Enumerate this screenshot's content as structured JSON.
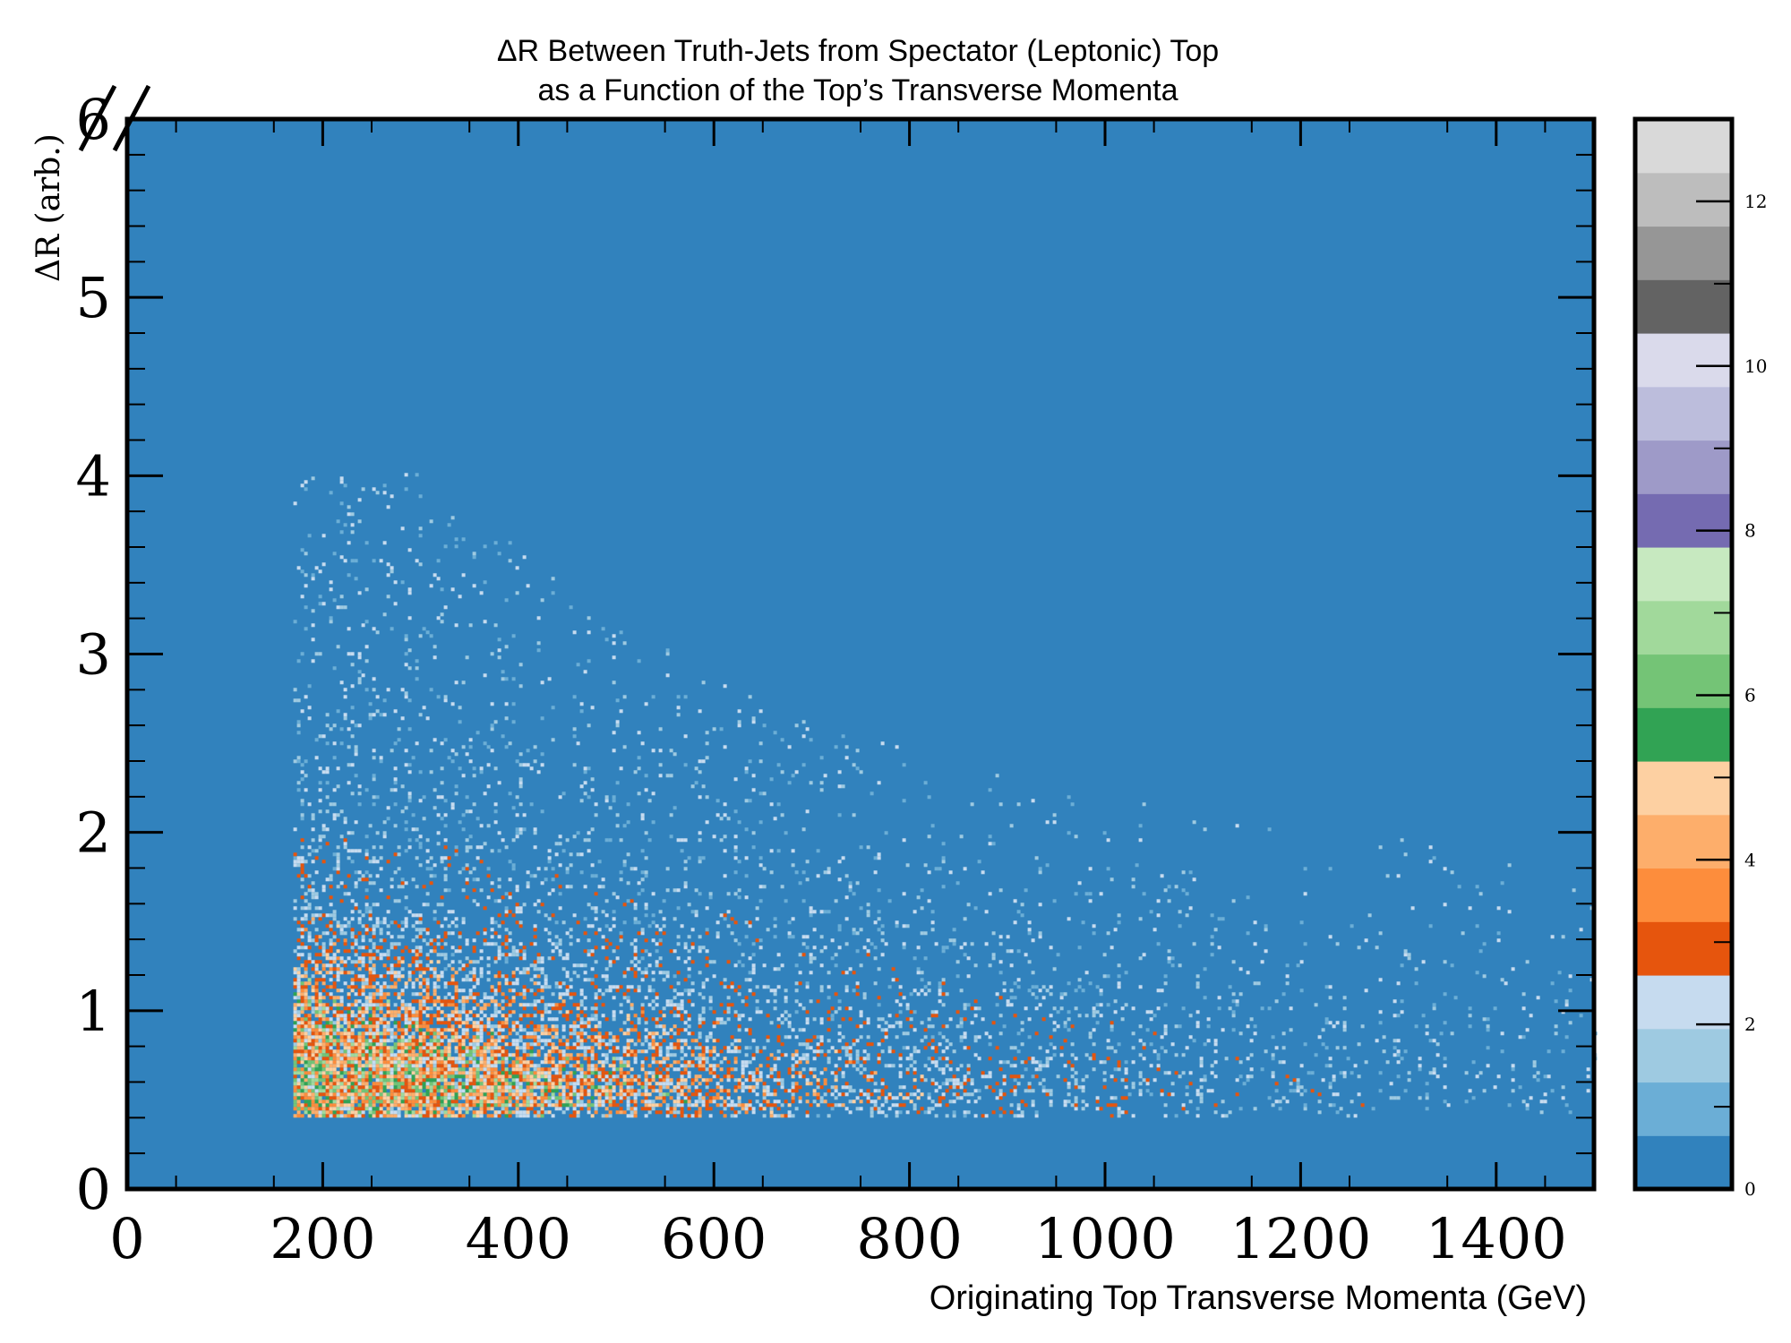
{
  "chart_data": {
    "type": "heatmap",
    "title_lines": [
      "ΔR Between Truth-Jets from Spectator (Leptonic) Top",
      "as a Function of the Top’s Transverse Momenta"
    ],
    "xlabel": "Originating Top Transverse Momenta (GeV)",
    "ylabel": "ΔR (arb.)",
    "xlim": [
      0,
      1500
    ],
    "ylim": [
      0,
      6
    ],
    "x_ticks": [
      "0",
      "200",
      "400",
      "600",
      "800",
      "1000",
      "1200",
      "1400"
    ],
    "x_tick_values": [
      0,
      200,
      400,
      600,
      800,
      1000,
      1200,
      1400
    ],
    "y_ticks": [
      "0",
      "1",
      "2",
      "3",
      "4",
      "5",
      "6"
    ],
    "y_tick_values": [
      0,
      1,
      2,
      3,
      4,
      5,
      6
    ],
    "colorbar": {
      "range": [
        0,
        13
      ],
      "ticks": [
        "0",
        "2",
        "4",
        "6",
        "8",
        "10",
        "12"
      ],
      "tick_values": [
        0,
        2,
        4,
        6,
        8,
        10,
        12
      ],
      "colors": [
        "#3182bd",
        "#6baed6",
        "#9ecae1",
        "#c6dbef",
        "#e6550d",
        "#fd8d3c",
        "#fdae6b",
        "#fdd0a2",
        "#31a354",
        "#74c476",
        "#a1d99b",
        "#c7e9c0",
        "#756bb1",
        "#9e9ac8",
        "#bcbddc",
        "#dadaeb",
        "#636363",
        "#969696",
        "#bdbdbd",
        "#d9d9d9"
      ]
    },
    "distribution": {
      "x_min": 170,
      "y_min": 0.4,
      "peak_x": 280,
      "peak_y": 0.6,
      "description_values": [
        {
          "x_range": [
            170,
            450
          ],
          "y_range": [
            0.4,
            1.0
          ],
          "level": "peak"
        },
        {
          "x_range": [
            170,
            700
          ],
          "y_range": [
            0.4,
            3.5
          ],
          "level": "medium"
        },
        {
          "x_range": [
            700,
            1500
          ],
          "y_range": [
            0.4,
            2.0
          ],
          "level": "low"
        }
      ]
    },
    "grid": false
  }
}
